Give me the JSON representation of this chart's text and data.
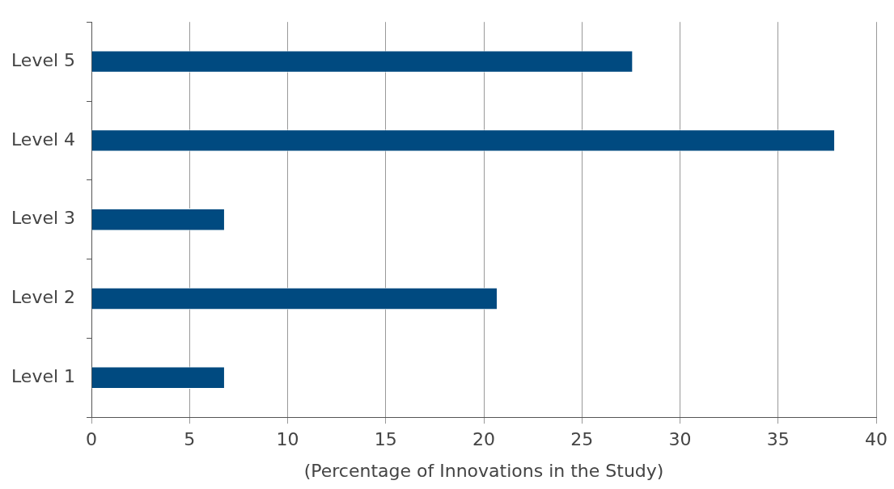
{
  "chart_data": {
    "type": "bar",
    "orientation": "horizontal",
    "xlabel": "(Percentage of Innovations in the Study)",
    "categories": [
      "Level 5",
      "Level 4",
      "Level 3",
      "Level 2",
      "Level 1"
    ],
    "values": [
      27.6,
      37.9,
      6.8,
      20.7,
      6.8
    ],
    "color": "#004a80",
    "xlim": [
      0,
      40
    ],
    "xticks": [
      0,
      5,
      10,
      15,
      20,
      25,
      30,
      35,
      40
    ],
    "grid": "x",
    "legend": false
  }
}
